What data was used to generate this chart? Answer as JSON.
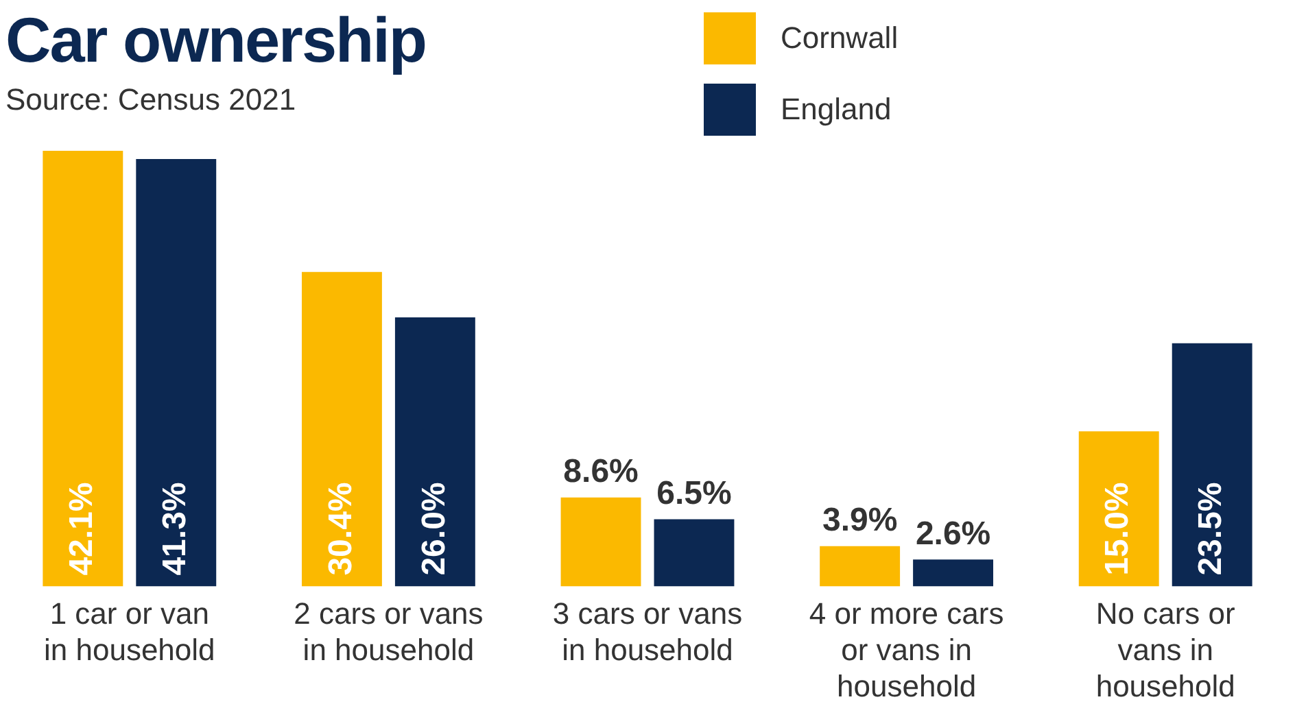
{
  "chart_data": {
    "type": "bar",
    "title": "Car ownership",
    "subtitle": "Source: Census 2021",
    "categories": [
      "1 car or van in household",
      "2 cars or vans in household",
      "3 cars or vans in household",
      "4 or more cars or vans in household",
      "No cars or vans in household"
    ],
    "series": [
      {
        "name": "Cornwall",
        "color": "#fbb900",
        "values": [
          42.1,
          30.4,
          8.6,
          3.9,
          15.0
        ],
        "value_labels": [
          "42.1%",
          "30.4%",
          "8.6%",
          "3.9%",
          "15.0%"
        ]
      },
      {
        "name": "England",
        "color": "#0c2852",
        "values": [
          41.3,
          26.0,
          6.5,
          2.6,
          23.5
        ],
        "value_labels": [
          "41.3%",
          "26.0%",
          "6.5%",
          "2.6%",
          "23.5%"
        ]
      }
    ],
    "legend": "top right",
    "grid": false,
    "tick_labels": "x"
  }
}
